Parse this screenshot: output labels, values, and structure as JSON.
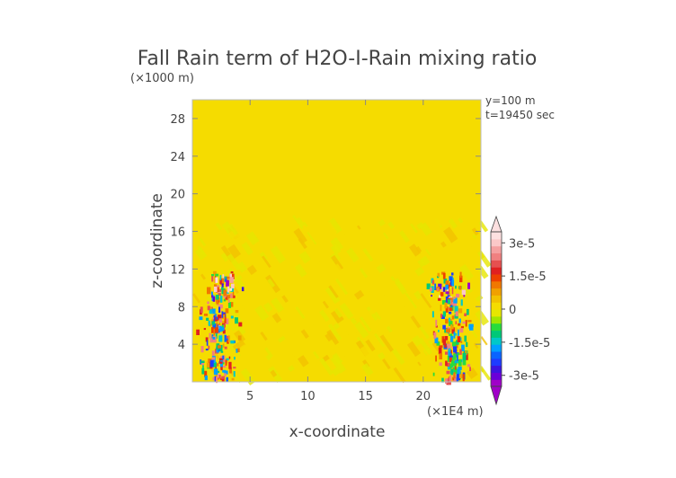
{
  "chart_data": {
    "type": "heatmap",
    "title": "Fall Rain term of H2O-I-Rain mixing ratio",
    "xlabel": "x-coordinate",
    "ylabel": "z-coordinate",
    "x_unit": "(×1E4 m)",
    "y_unit": "(×1000 m)",
    "info": [
      "y=100 m",
      "t=19450 sec"
    ],
    "xlim": [
      0,
      25
    ],
    "ylim": [
      0,
      30
    ],
    "x_ticks": [
      5,
      10,
      15,
      20
    ],
    "y_ticks": [
      4,
      8,
      12,
      16,
      20,
      24,
      28
    ],
    "colorbar": {
      "range": [
        -3.5e-05,
        3.5e-05
      ],
      "tick_values": [
        3e-05,
        1.5e-05,
        0,
        -1.5e-05,
        -3e-05
      ],
      "tick_labels": [
        "3e-5",
        "1.5e-5",
        "0",
        "-1.5e-5",
        "-3e-5"
      ],
      "colors": [
        "#a000c8",
        "#6a00d8",
        "#3c14e0",
        "#1e3cff",
        "#0a64ff",
        "#00a0ff",
        "#00c8c8",
        "#00c878",
        "#28dc3c",
        "#a0e600",
        "#e6e600",
        "#f5dc00",
        "#f2c200",
        "#f0a000",
        "#f07800",
        "#ee4000",
        "#e02020",
        "#e65050",
        "#f08080",
        "#f5a0a0",
        "#fbc8c8",
        "#fde0e0"
      ]
    },
    "field_description": {
      "background_value": 0,
      "upper_band_value": 3e-06,
      "upper_band_top_km": 21,
      "active_columns_x": [
        2.5,
        22.5
      ]
    }
  }
}
